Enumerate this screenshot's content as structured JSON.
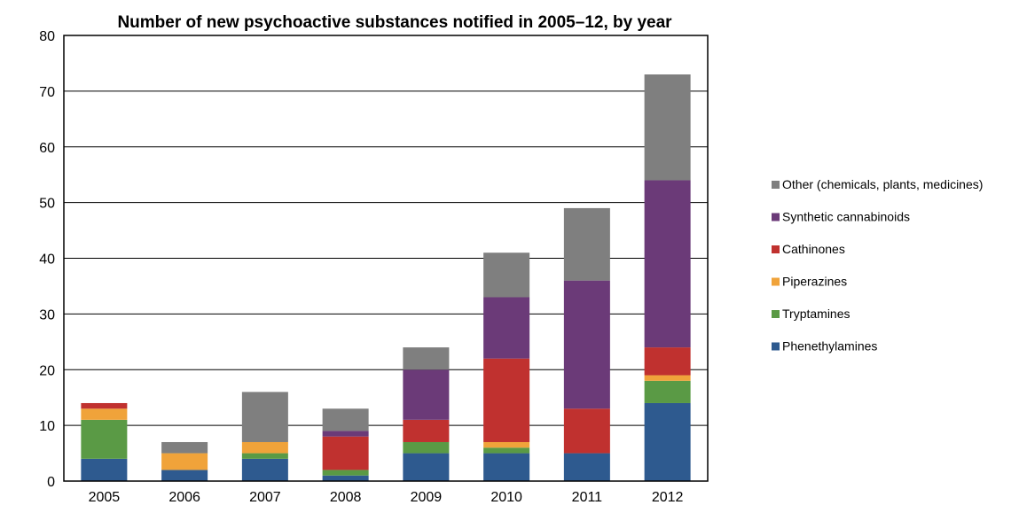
{
  "chart_data": {
    "type": "bar",
    "stacked": true,
    "title": "Number of new psychoactive substances notified in 2005–12, by year",
    "xlabel": "",
    "ylabel": "",
    "ylim": [
      0,
      80
    ],
    "yticks": [
      0,
      10,
      20,
      30,
      40,
      50,
      60,
      70,
      80
    ],
    "grid": true,
    "legend_position": "right",
    "categories": [
      "2005",
      "2006",
      "2007",
      "2008",
      "2009",
      "2010",
      "2011",
      "2012"
    ],
    "series": [
      {
        "name": "Phenethylamines",
        "color": "#2e5a8f",
        "values": [
          4,
          2,
          4,
          1,
          5,
          5,
          5,
          14
        ]
      },
      {
        "name": "Tryptamines",
        "color": "#5a9a45",
        "values": [
          7,
          0,
          1,
          1,
          2,
          1,
          0,
          4
        ]
      },
      {
        "name": "Piperazines",
        "color": "#f0a33a",
        "values": [
          2,
          3,
          2,
          0,
          0,
          1,
          0,
          1
        ]
      },
      {
        "name": "Cathinones",
        "color": "#c0312f",
        "values": [
          1,
          0,
          0,
          6,
          4,
          15,
          8,
          5
        ]
      },
      {
        "name": "Synthetic cannabinoids",
        "color": "#6b3a78",
        "values": [
          0,
          0,
          0,
          1,
          9,
          11,
          23,
          30
        ]
      },
      {
        "name": "Other (chemicals, plants, medicines)",
        "color": "#7f7f7f",
        "values": [
          0,
          2,
          9,
          4,
          4,
          8,
          13,
          19
        ]
      }
    ]
  }
}
